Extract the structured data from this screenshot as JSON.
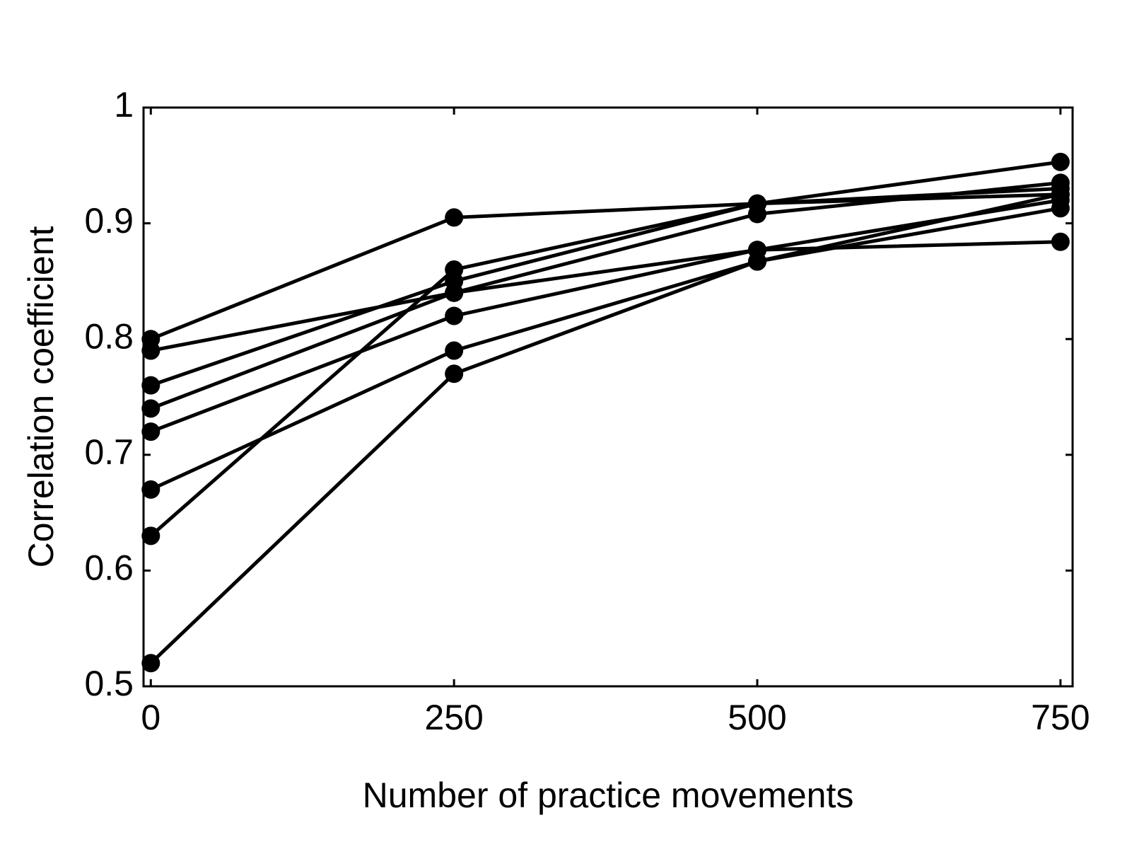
{
  "chart_data": {
    "type": "line",
    "x_label": "Number of practice movements",
    "y_label": "Correlation coefficient",
    "x": [
      0,
      250,
      500,
      750
    ],
    "series": [
      {
        "color": "#000000",
        "values": [
          0.8,
          0.905,
          0.917,
          0.925
        ]
      },
      {
        "color": "#000000",
        "values": [
          0.79,
          0.84,
          0.877,
          0.884
        ]
      },
      {
        "color": "#000000",
        "values": [
          0.76,
          0.85,
          0.917,
          0.953
        ]
      },
      {
        "color": "#000000",
        "values": [
          0.74,
          0.84,
          0.908,
          0.935
        ]
      },
      {
        "color": "#000000",
        "values": [
          0.72,
          0.82,
          0.877,
          0.92
        ]
      },
      {
        "color": "#000000",
        "values": [
          0.67,
          0.79,
          0.867,
          0.913
        ]
      },
      {
        "color": "#000000",
        "values": [
          0.63,
          0.86,
          0.917,
          0.93
        ]
      },
      {
        "color": "#000000",
        "values": [
          0.52,
          0.77,
          0.867,
          0.925
        ]
      }
    ],
    "xlim": [
      -6,
      760
    ],
    "xticks": [
      0,
      250,
      500,
      750
    ],
    "ylim": [
      0.5,
      1
    ],
    "yticks": [
      0.5,
      0.6,
      0.7,
      0.8,
      0.9,
      1
    ],
    "grid": false
  }
}
